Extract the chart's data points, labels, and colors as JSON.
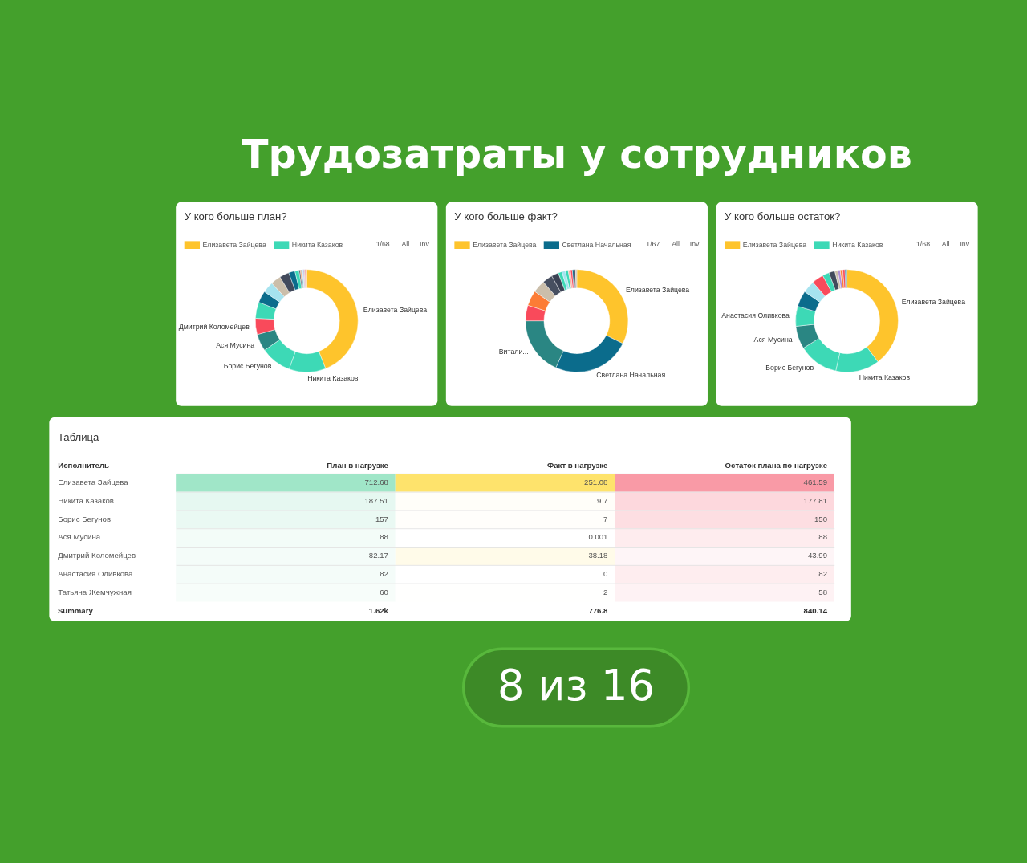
{
  "chart_data": [
    {
      "type": "other",
      "title": "Трудозатраты у сотрудников"
    },
    {
      "type": "donut",
      "title": "У кого больше план?",
      "legend": "top left",
      "annotations": [
        "1/68",
        "All",
        "Inv"
      ],
      "categories": [
        "Елизавета Зайцева",
        "Никита Казаков",
        "Борис Бегунов",
        "Ася Мусина",
        "Дмитрий Коломейцев",
        null,
        null,
        null,
        null,
        null,
        null,
        null,
        null,
        null,
        null,
        null,
        null,
        null,
        null,
        null
      ],
      "values": [
        44.0,
        11.6,
        9.7,
        5.4,
        5.1,
        5.1,
        3.7,
        3.5,
        3.2,
        3.0,
        2.0,
        1.3,
        0.4,
        0.3,
        0.3,
        0.3,
        0.3,
        0.3,
        0.3,
        0.2
      ],
      "colors": [
        "#fec42c",
        "#3dd9b6",
        "#3dd9b6",
        "#2a8683",
        "#f94a5b",
        "#3dd9b6",
        "#0b6c8c",
        "#a6e3ef",
        "#cbbeaa",
        "#424a5c",
        "#0b6c8c",
        "#3dd9b6",
        "#424a5c",
        "#fc7c35",
        "#0b6c8c",
        "#a6e3ef",
        "#b08ed6",
        "#cbbeaa",
        "#f94a5b",
        "#f7b3a3"
      ]
    },
    {
      "type": "donut",
      "title": "У кого больше факт?",
      "legend": "top left",
      "annotations": [
        "1/67",
        "All",
        "Inv"
      ],
      "categories": [
        "Елизавета Зайцева",
        "Светлана Начальная",
        "Витали...",
        null,
        null,
        null,
        null,
        null,
        null,
        null,
        null,
        null,
        null,
        null,
        null,
        null
      ],
      "values": [
        32.3,
        24.4,
        18.3,
        4.9,
        4.8,
        4.0,
        3.2,
        2.2,
        1.2,
        1.1,
        0.9,
        0.7,
        0.6,
        0.5,
        0.5,
        0.4
      ],
      "colors": [
        "#fec42c",
        "#0b6c8c",
        "#2a8683",
        "#f94a5b",
        "#fc7c35",
        "#cbbeaa",
        "#474f60",
        "#3b4254",
        "#3dd9b6",
        "#a6e3ef",
        "#3dd9b6",
        "#f7b3a3",
        "#f94a5b",
        "#0b6c8c",
        "#424a5c",
        "#cbbeaa"
      ]
    },
    {
      "type": "donut",
      "title": "У кого больше остаток?",
      "legend": "top left",
      "annotations": [
        "1/68",
        "All",
        "Inv"
      ],
      "categories": [
        "Елизавета Зайцева",
        "Никита Казаков",
        "Борис Бегунов",
        "Ася Мусина",
        "Анастасия Оливкова",
        null,
        null,
        null,
        null,
        null,
        null,
        null,
        null,
        null,
        null
      ],
      "values": [
        39.7,
        13.8,
        12.6,
        7.2,
        6.3,
        5.0,
        3.9,
        3.7,
        2.1,
        1.9,
        0.9,
        0.8,
        0.8,
        0.7,
        0.6
      ],
      "colors": [
        "#fec42c",
        "#3dd9b6",
        "#3dd9b6",
        "#2a8683",
        "#3dd9b6",
        "#0b6c8c",
        "#a6e3ef",
        "#f94a5b",
        "#3dd9b6",
        "#424a5c",
        "#cbbeaa",
        "#b08ed6",
        "#fc7c35",
        "#f94a5b",
        "#0b6c8c"
      ]
    },
    {
      "type": "heatmap",
      "title": "Таблица",
      "ylabel": "Исполнитель",
      "categories": [
        "План в нагрузке",
        "Факт в нагрузке",
        "Остаток плана по нагрузке"
      ],
      "y_categories": [
        "Елизавета Зайцева",
        "Никита Казаков",
        "Борис Бегунов",
        "Ася Мусина",
        "Дмитрий Коломейцев",
        "Анастасия Оливкова",
        "Татьяна Жемчужная"
      ],
      "cells": [
        [
          712.68,
          251.08,
          461.59
        ],
        [
          187.51,
          9.7,
          177.81
        ],
        [
          157,
          7,
          150
        ],
        [
          88,
          0.001,
          88
        ],
        [
          82.17,
          38.18,
          43.99
        ],
        [
          82,
          0,
          82
        ],
        [
          60,
          2,
          58
        ]
      ],
      "colors": [
        "#a0e6c8",
        "#fee36c",
        "#f99aa6"
      ],
      "data_labels": true,
      "grid": "y",
      "totals": [
        "1.62k",
        "776.8",
        "840.14"
      ],
      "annotations": [
        "Summary"
      ]
    },
    {
      "type": "other",
      "annotations": [
        "8 из 16"
      ]
    }
  ]
}
